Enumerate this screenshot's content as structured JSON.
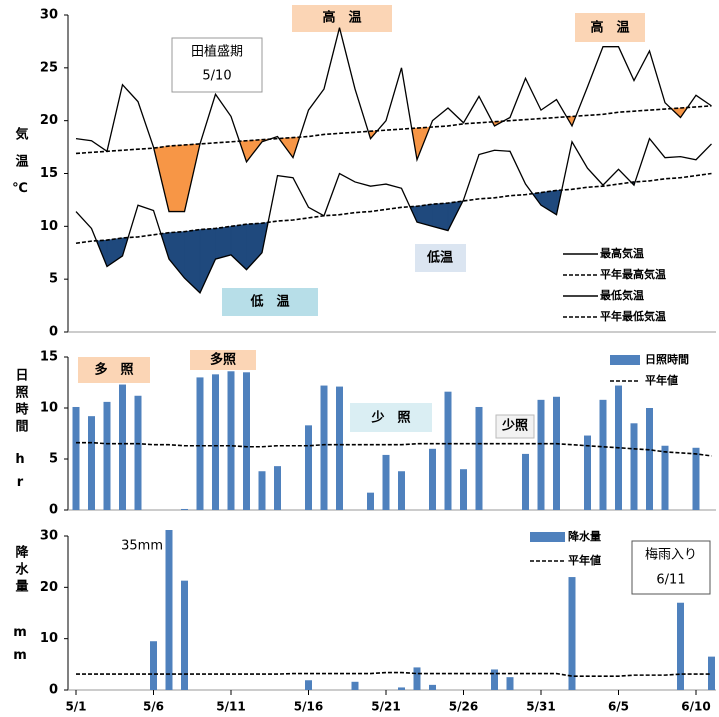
{
  "chart_data": [
    {
      "type": "line",
      "ylabel": "気温℃",
      "ylim": [
        0,
        30
      ],
      "yticks": [
        0,
        5,
        10,
        15,
        20,
        25,
        30
      ],
      "annotations": [
        "田植盛期",
        "5/10",
        "高　温",
        "高　温",
        "低　温",
        "低温"
      ],
      "series": [
        {
          "name": "最高気温",
          "color": "#000000",
          "dash": false,
          "below_normal_color": "#f79646",
          "values": [
            18.3,
            18.1,
            17.1,
            23.4,
            21.8,
            17.5,
            11.4,
            11.4,
            17.8,
            22.5,
            20.4,
            16.1,
            18.0,
            18.5,
            16.5,
            21.0,
            23.0,
            28.8,
            23.0,
            18.3,
            20.0,
            25.0,
            16.3,
            20.0,
            21.2,
            19.8,
            22.3,
            19.5,
            20.3,
            24.0,
            21.0,
            22.0,
            19.5,
            23.2,
            27.0,
            27.0,
            23.8,
            26.6,
            21.7,
            20.3,
            22.4,
            21.4
          ]
        },
        {
          "name": "平年最高気温",
          "color": "#000000",
          "dash": true,
          "values": [
            16.9,
            17.0,
            17.1,
            17.2,
            17.3,
            17.4,
            17.6,
            17.7,
            17.8,
            17.9,
            18.0,
            18.1,
            18.2,
            18.3,
            18.4,
            18.5,
            18.7,
            18.8,
            18.9,
            19.0,
            19.1,
            19.2,
            19.3,
            19.4,
            19.5,
            19.7,
            19.8,
            19.9,
            20.0,
            20.1,
            20.2,
            20.3,
            20.4,
            20.5,
            20.6,
            20.8,
            20.9,
            21.0,
            21.1,
            21.2,
            21.3,
            21.4
          ]
        },
        {
          "name": "最低気温",
          "color": "#000000",
          "dash": false,
          "below_normal_color": "#1f497d",
          "values": [
            11.4,
            9.8,
            6.2,
            7.2,
            12.0,
            11.5,
            6.9,
            5.1,
            3.7,
            6.9,
            7.3,
            5.9,
            7.5,
            14.8,
            14.6,
            11.8,
            11.0,
            15.0,
            14.2,
            13.8,
            14.0,
            13.6,
            10.4,
            10.0,
            9.6,
            12.5,
            16.8,
            17.2,
            17.1,
            14.0,
            12.0,
            11.1,
            18.0,
            15.5,
            13.9,
            15.4,
            13.9,
            18.3,
            16.5,
            16.6,
            16.3,
            17.8
          ]
        },
        {
          "name": "平年最低気温",
          "color": "#000000",
          "dash": true,
          "values": [
            8.4,
            8.6,
            8.7,
            8.9,
            9.0,
            9.2,
            9.4,
            9.5,
            9.7,
            9.8,
            10.0,
            10.2,
            10.3,
            10.5,
            10.6,
            10.8,
            11.0,
            11.1,
            11.3,
            11.4,
            11.6,
            11.8,
            11.9,
            12.1,
            12.2,
            12.4,
            12.6,
            12.7,
            12.9,
            13.0,
            13.2,
            13.4,
            13.5,
            13.7,
            13.8,
            14.0,
            14.2,
            14.3,
            14.5,
            14.6,
            14.8,
            15.0
          ]
        }
      ]
    },
    {
      "type": "bar",
      "ylabel": "日照時間",
      "ylabel_unit": "hr",
      "ylim": [
        0,
        15
      ],
      "yticks": [
        0,
        5,
        10,
        15
      ],
      "annotations": [
        "多　照",
        "多照",
        "少　照",
        "少照"
      ],
      "series": [
        {
          "name": "日照時間",
          "color": "#4f81bd",
          "values": [
            10.1,
            9.2,
            10.6,
            12.3,
            11.2,
            0,
            0,
            0.1,
            13.0,
            13.3,
            13.6,
            13.5,
            3.8,
            4.3,
            0,
            8.3,
            12.2,
            12.1,
            0,
            1.7,
            5.4,
            3.8,
            0,
            6.0,
            11.6,
            4.0,
            10.1,
            0,
            0,
            5.5,
            10.8,
            11.1,
            0,
            7.3,
            10.8,
            12.2,
            8.5,
            10.0,
            6.3,
            0,
            6.1,
            0
          ]
        },
        {
          "name": "平年値",
          "color": "#000000",
          "type": "line",
          "dash": true,
          "values": [
            6.6,
            6.6,
            6.5,
            6.5,
            6.5,
            6.4,
            6.4,
            6.3,
            6.3,
            6.3,
            6.3,
            6.2,
            6.2,
            6.3,
            6.3,
            6.3,
            6.4,
            6.4,
            6.4,
            6.4,
            6.4,
            6.4,
            6.5,
            6.5,
            6.5,
            6.5,
            6.5,
            6.5,
            6.5,
            6.5,
            6.5,
            6.5,
            6.4,
            6.3,
            6.2,
            6.1,
            6.0,
            5.9,
            5.7,
            5.6,
            5.5,
            5.3
          ]
        }
      ]
    },
    {
      "type": "bar",
      "ylabel": "降水量",
      "ylabel_unit": "mm",
      "ylim": [
        0,
        30
      ],
      "yticks": [
        0,
        10,
        20,
        30
      ],
      "categories": [
        "5/1",
        null,
        null,
        null,
        null,
        "5/6",
        null,
        null,
        null,
        null,
        "5/11",
        null,
        null,
        null,
        null,
        "5/16",
        null,
        null,
        null,
        null,
        "5/21",
        null,
        null,
        null,
        null,
        "5/26",
        null,
        null,
        null,
        null,
        "5/31",
        null,
        null,
        null,
        null,
        "6/5",
        null,
        null,
        null,
        null,
        "6/10",
        null
      ],
      "annotations": [
        "梅雨入り",
        "6/11"
      ],
      "series": [
        {
          "name": "降水量",
          "color": "#4f81bd",
          "values": [
            0,
            0,
            0,
            0,
            0,
            9.5,
            35,
            21.3,
            0,
            0,
            0,
            0,
            0,
            0,
            0,
            1.9,
            0,
            0,
            1.6,
            0,
            0,
            0.5,
            4.4,
            1.0,
            0,
            0,
            0,
            4.0,
            2.5,
            0,
            0,
            0,
            22.0,
            0,
            0,
            0,
            0,
            0,
            0,
            17.0,
            0,
            6.5
          ],
          "value_labels": [
            null,
            null,
            null,
            null,
            null,
            null,
            "35mm",
            null,
            null,
            null,
            null,
            null,
            null,
            null,
            null,
            null,
            null,
            null,
            null,
            null,
            null,
            null,
            null,
            null,
            null,
            null,
            null,
            null,
            null,
            null,
            null,
            null,
            null,
            null,
            null,
            null,
            null,
            null,
            null,
            null,
            null,
            null
          ]
        },
        {
          "name": "平年値",
          "color": "#000000",
          "type": "line",
          "dash": true,
          "values": [
            3.1,
            3.1,
            3.1,
            3.1,
            3.1,
            3.1,
            3.1,
            3.1,
            3.1,
            3.1,
            3.1,
            3.1,
            3.1,
            3.1,
            3.2,
            3.2,
            3.2,
            3.2,
            3.2,
            3.2,
            3.4,
            3.4,
            3.2,
            3.2,
            3.2,
            3.2,
            3.2,
            3.2,
            3.2,
            3.2,
            3.2,
            3.2,
            2.7,
            2.7,
            2.7,
            2.7,
            2.9,
            2.9,
            2.9,
            3.1,
            3.1,
            3.1
          ]
        }
      ]
    }
  ]
}
